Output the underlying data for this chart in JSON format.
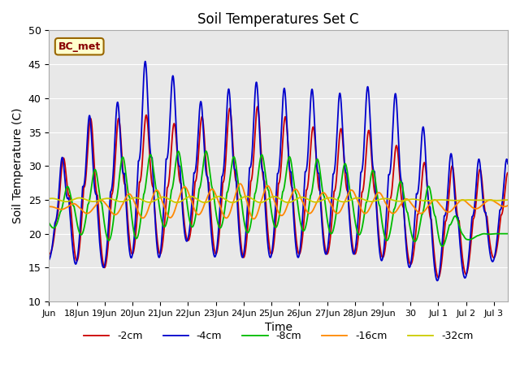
{
  "title": "Soil Temperatures Set C",
  "xlabel": "Time",
  "ylabel": "Soil Temperature (C)",
  "ylim": [
    10,
    50
  ],
  "xlim_start": 0.7,
  "xlim_end": 16.5,
  "annotation": "BC_met",
  "bg_color": "#e8e8e8",
  "series": {
    "-2cm": {
      "color": "#cc0000",
      "lw": 1.3,
      "amp_base": 13.0,
      "phase": 0.25,
      "mean": 26.0,
      "sharpness": 3.0,
      "amp_var": 0.15
    },
    "-4cm": {
      "color": "#0000cc",
      "lw": 1.3,
      "amp_base": 16.0,
      "phase": 0.22,
      "mean": 26.0,
      "sharpness": 3.5,
      "amp_var": 0.18
    },
    "-8cm": {
      "color": "#00bb00",
      "lw": 1.3,
      "amp_base": 7.5,
      "phase": 0.42,
      "mean": 25.5,
      "sharpness": 2.0,
      "amp_var": 0.08
    },
    "-16cm": {
      "color": "#ff8800",
      "lw": 1.3,
      "amp_base": 2.0,
      "phase": 0.68,
      "mean": 25.0,
      "sharpness": 1.5,
      "amp_var": 0.03
    },
    "-32cm": {
      "color": "#cccc00",
      "lw": 1.3,
      "amp_base": 0.5,
      "phase": 0.9,
      "mean": 25.0,
      "sharpness": 1.0,
      "amp_var": 0.01
    }
  },
  "tick_dates": [
    "Jun",
    "18Jun",
    "19Jun",
    "20Jun",
    "21Jun",
    "22Jun",
    "23Jun",
    "24Jun",
    "25Jun",
    "26Jun",
    "27Jun",
    "28Jun",
    "29Jun",
    "30",
    "Jul 1",
    "Jul 2",
    "Jul 3"
  ],
  "tick_positions": [
    0,
    1,
    2,
    3,
    4,
    5,
    6,
    7,
    8,
    9,
    10,
    11,
    12,
    13,
    14,
    15,
    16
  ],
  "peak_maxima": {
    "-2cm": [
      39.5,
      35.0,
      39.0,
      36.0,
      36.5,
      38.0,
      39.0,
      38.5,
      36.0,
      35.5,
      35.5,
      35.0,
      31.0,
      30.0,
      30.0
    ],
    "-4cm": [
      39.5,
      35.0,
      44.5,
      46.5,
      39.5,
      39.5,
      43.5,
      41.0,
      42.0,
      40.5,
      41.0,
      42.5,
      38.5,
      32.5,
      31.0
    ],
    "minima": [
      16.0,
      15.0,
      17.0,
      17.0,
      19.0,
      17.0,
      16.5,
      17.0,
      17.0,
      17.0,
      16.5,
      15.5,
      13.5,
      14.0,
      16.5
    ]
  }
}
